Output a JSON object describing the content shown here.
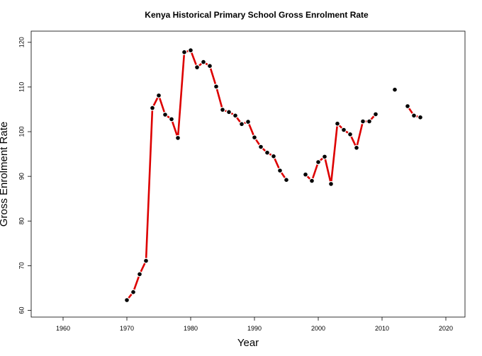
{
  "chart_data": {
    "type": "line",
    "title": "Kenya Historical Primary School Gross Enrolment Rate",
    "xlabel": "Year",
    "ylabel": "Gross Enrolment Rate",
    "xlim": [
      1955,
      2023
    ],
    "ylim": [
      58.5,
      122.5
    ],
    "x_ticks": [
      1960,
      1970,
      1980,
      1990,
      2000,
      2010,
      2020
    ],
    "y_ticks": [
      60,
      70,
      80,
      90,
      100,
      110,
      120
    ],
    "grid": false,
    "legend": "none",
    "series": [
      {
        "line_color": "#dd0000",
        "point_color": "#000000",
        "x": [
          1970,
          1971,
          1972,
          1973,
          1974,
          1975,
          1976,
          1977,
          1978,
          1979,
          1980,
          1981,
          1982,
          1983,
          1984,
          1985,
          1986,
          1987,
          1988,
          1989,
          1990,
          1991,
          1992,
          1993,
          1994,
          1995,
          1996,
          1997,
          1998,
          1999,
          2000,
          2001,
          2002,
          2003,
          2004,
          2005,
          2006,
          2007,
          2008,
          2009,
          2010,
          2011,
          2012,
          2013,
          2014,
          2015,
          2016
        ],
        "y": [
          62.3,
          64.1,
          68.1,
          71.1,
          105.3,
          108.1,
          103.8,
          102.8,
          98.6,
          117.8,
          118.2,
          114.4,
          115.6,
          114.7,
          110.1,
          104.9,
          104.4,
          103.6,
          101.7,
          102.2,
          98.7,
          96.6,
          95.3,
          94.5,
          91.3,
          89.2,
          null,
          null,
          90.4,
          89.0,
          93.2,
          94.4,
          88.3,
          101.8,
          100.4,
          99.4,
          96.4,
          102.3,
          102.3,
          103.9,
          null,
          null,
          109.4,
          null,
          105.7,
          103.6,
          103.2
        ]
      }
    ]
  }
}
